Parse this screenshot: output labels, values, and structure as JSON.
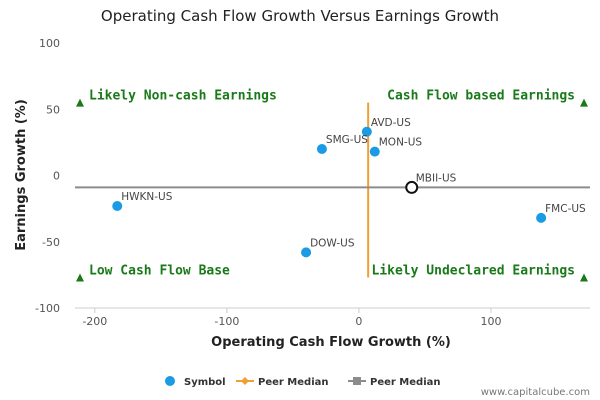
{
  "chart_data": {
    "type": "scatter",
    "title": "Operating Cash Flow Growth Versus Earnings Growth",
    "xlabel": "Operating Cash Flow Growth (%)",
    "ylabel": "Earnings Growth (%)",
    "xlim": [
      -215,
      175
    ],
    "ylim": [
      -100,
      100
    ],
    "xticks": [
      -200,
      -100,
      0,
      100
    ],
    "yticks": [
      100,
      50,
      0,
      -50,
      -100
    ],
    "grid": false,
    "colors": {
      "symbol": "#1a9be3",
      "peer_median_x": "#f0a030",
      "peer_median_y": "#8c8c8c",
      "quadrant_text": "#1a7a1a",
      "axis": "#cccccc"
    },
    "points": [
      {
        "label": "AVD-US",
        "x": 6,
        "y": 33
      },
      {
        "label": "SMG-US",
        "x": -28,
        "y": 20
      },
      {
        "label": "MON-US",
        "x": 12,
        "y": 18
      },
      {
        "label": "HWKN-US",
        "x": -183,
        "y": -23
      },
      {
        "label": "DOW-US",
        "x": -40,
        "y": -58
      },
      {
        "label": "FMC-US",
        "x": 138,
        "y": -32
      }
    ],
    "highlight": {
      "label": "MBII-US",
      "x": 40,
      "y": -9
    },
    "peer_median": {
      "x": 7,
      "y": -9,
      "x_range": [
        -77,
        55
      ],
      "y_range": [
        -215,
        175
      ]
    },
    "quadrants": [
      {
        "label": "Likely Non-cash Earnings",
        "x": -215,
        "y": 55,
        "align": "left",
        "marker_y": 55
      },
      {
        "label": "Cash Flow based Earnings",
        "x": 175,
        "y": 55,
        "align": "right",
        "marker_y": 55
      },
      {
        "label": "Low Cash Flow Base",
        "x": -215,
        "y": -77,
        "align": "left",
        "marker_y": -77
      },
      {
        "label": "Likely Undeclared Earnings",
        "x": 175,
        "y": -77,
        "align": "right",
        "marker_y": -77
      }
    ],
    "legend": {
      "position": "bottom-center",
      "items": [
        {
          "label": "Symbol",
          "kind": "dot"
        },
        {
          "label": "Peer Median",
          "kind": "orange-diamond-line"
        },
        {
          "label": "Peer Median",
          "kind": "gray-square-line"
        }
      ]
    }
  },
  "watermark": "www.capitalcube.com"
}
